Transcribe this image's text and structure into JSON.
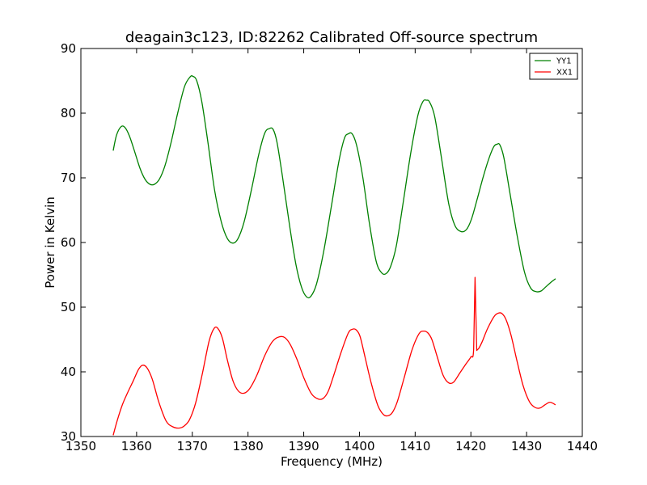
{
  "chart_data": {
    "type": "line",
    "title": "deagain3c123, ID:82262 Calibrated Off-source spectrum",
    "xlabel": "Frequency (MHz)",
    "ylabel": "Power in Kelvin",
    "xlim": [
      1350,
      1440
    ],
    "ylim": [
      30,
      90
    ],
    "xticks": [
      1350,
      1360,
      1370,
      1380,
      1390,
      1400,
      1410,
      1420,
      1430,
      1440
    ],
    "yticks": [
      30,
      40,
      50,
      60,
      70,
      80,
      90
    ],
    "grid": false,
    "legend_position": "top-right",
    "series": [
      {
        "name": "YY1",
        "color": "#008000",
        "x": [
          1355.8,
          1356.4,
          1357.2,
          1357.9,
          1358.7,
          1359.6,
          1360.6,
          1361.5,
          1362.4,
          1363.2,
          1364.1,
          1365.1,
          1366.2,
          1367.4,
          1368.6,
          1369.6,
          1370.1,
          1370.8,
          1371.7,
          1372.8,
          1374.0,
          1375.2,
          1376.3,
          1377.3,
          1378.2,
          1379.3,
          1380.6,
          1381.9,
          1383.0,
          1383.8,
          1384.5,
          1385.2,
          1386.2,
          1387.5,
          1388.6,
          1389.6,
          1390.5,
          1391.3,
          1392.3,
          1393.6,
          1395.0,
          1396.3,
          1397.3,
          1398.0,
          1398.7,
          1399.5,
          1400.6,
          1401.8,
          1403.0,
          1404.0,
          1404.8,
          1405.6,
          1406.6,
          1407.8,
          1409.2,
          1410.5,
          1411.4,
          1412.0,
          1412.6,
          1413.5,
          1414.7,
          1416.0,
          1417.1,
          1418.2,
          1419.2,
          1420.1,
          1421.1,
          1422.2,
          1423.2,
          1424.1,
          1424.7,
          1425.2,
          1425.9,
          1427.0,
          1428.3,
          1429.6,
          1430.7,
          1431.7,
          1432.6,
          1433.4,
          1434.3,
          1435.2
        ],
        "y": [
          74.2,
          76.6,
          77.9,
          77.8,
          76.5,
          74.2,
          71.5,
          69.8,
          69.0,
          69.0,
          69.8,
          71.9,
          75.5,
          80.1,
          84.1,
          85.6,
          85.7,
          85.0,
          81.8,
          75.5,
          68.1,
          63.2,
          60.6,
          59.9,
          60.6,
          63.2,
          68.1,
          73.5,
          76.9,
          77.6,
          77.5,
          75.5,
          70.1,
          62.4,
          56.6,
          53.1,
          51.6,
          51.7,
          53.6,
          58.7,
          65.8,
          72.5,
          76.1,
          76.8,
          76.8,
          75.0,
          70.1,
          62.9,
          57.1,
          55.3,
          55.2,
          56.3,
          59.4,
          65.9,
          73.8,
          79.7,
          81.8,
          82.0,
          81.7,
          79.5,
          73.2,
          66.1,
          62.7,
          61.7,
          62.0,
          63.6,
          66.6,
          70.1,
          72.9,
          74.8,
          75.2,
          75.1,
          73.2,
          67.7,
          61.1,
          55.5,
          53.0,
          52.4,
          52.5,
          53.1,
          53.8,
          54.4
        ]
      },
      {
        "name": "XX1",
        "color": "#ff0000",
        "x": [
          1355.8,
          1356.5,
          1357.4,
          1358.4,
          1359.4,
          1360.3,
          1361.0,
          1361.8,
          1362.8,
          1364.0,
          1365.3,
          1366.5,
          1367.6,
          1368.5,
          1369.5,
          1370.6,
          1371.8,
          1373.0,
          1373.9,
          1374.6,
          1375.4,
          1376.3,
          1377.3,
          1378.3,
          1379.3,
          1380.3,
          1381.6,
          1383.0,
          1384.4,
          1385.6,
          1386.6,
          1387.6,
          1388.8,
          1390.1,
          1391.4,
          1392.6,
          1393.5,
          1394.4,
          1395.4,
          1396.7,
          1398.0,
          1398.8,
          1399.4,
          1400.1,
          1401.0,
          1402.1,
          1403.3,
          1404.3,
          1405.1,
          1405.9,
          1406.8,
          1408.0,
          1409.4,
          1410.7,
          1411.6,
          1412.3,
          1413.0,
          1413.9,
          1415.0,
          1416.0,
          1416.9,
          1418.0,
          1419.1,
          1420.0,
          1420.5,
          1420.75,
          1421.05,
          1421.4,
          1422.0,
          1423.0,
          1424.2,
          1425.0,
          1425.6,
          1426.3,
          1427.2,
          1428.3,
          1429.4,
          1430.5,
          1431.5,
          1432.4,
          1433.3,
          1434.2,
          1435.2
        ],
        "y": [
          30.2,
          32.4,
          34.8,
          36.8,
          38.6,
          40.3,
          41.0,
          40.7,
          38.9,
          35.3,
          32.4,
          31.5,
          31.3,
          31.6,
          32.6,
          35.2,
          39.7,
          44.7,
          46.7,
          46.7,
          45.2,
          41.8,
          38.6,
          37.0,
          36.7,
          37.4,
          39.5,
          42.5,
          44.7,
          45.4,
          45.3,
          44.2,
          41.9,
          38.9,
          36.6,
          35.8,
          35.9,
          37.0,
          39.5,
          43.0,
          46.0,
          46.6,
          46.5,
          45.5,
          42.3,
          38.3,
          34.8,
          33.4,
          33.2,
          33.7,
          35.4,
          39.0,
          43.3,
          45.9,
          46.3,
          46.0,
          45.0,
          42.5,
          39.5,
          38.3,
          38.4,
          39.8,
          41.2,
          42.3,
          43.5,
          54.6,
          43.3,
          43.6,
          44.6,
          46.7,
          48.6,
          49.1,
          49.0,
          48.1,
          45.7,
          41.6,
          37.8,
          35.4,
          34.5,
          34.4,
          34.9,
          35.3,
          34.9
        ]
      }
    ]
  }
}
